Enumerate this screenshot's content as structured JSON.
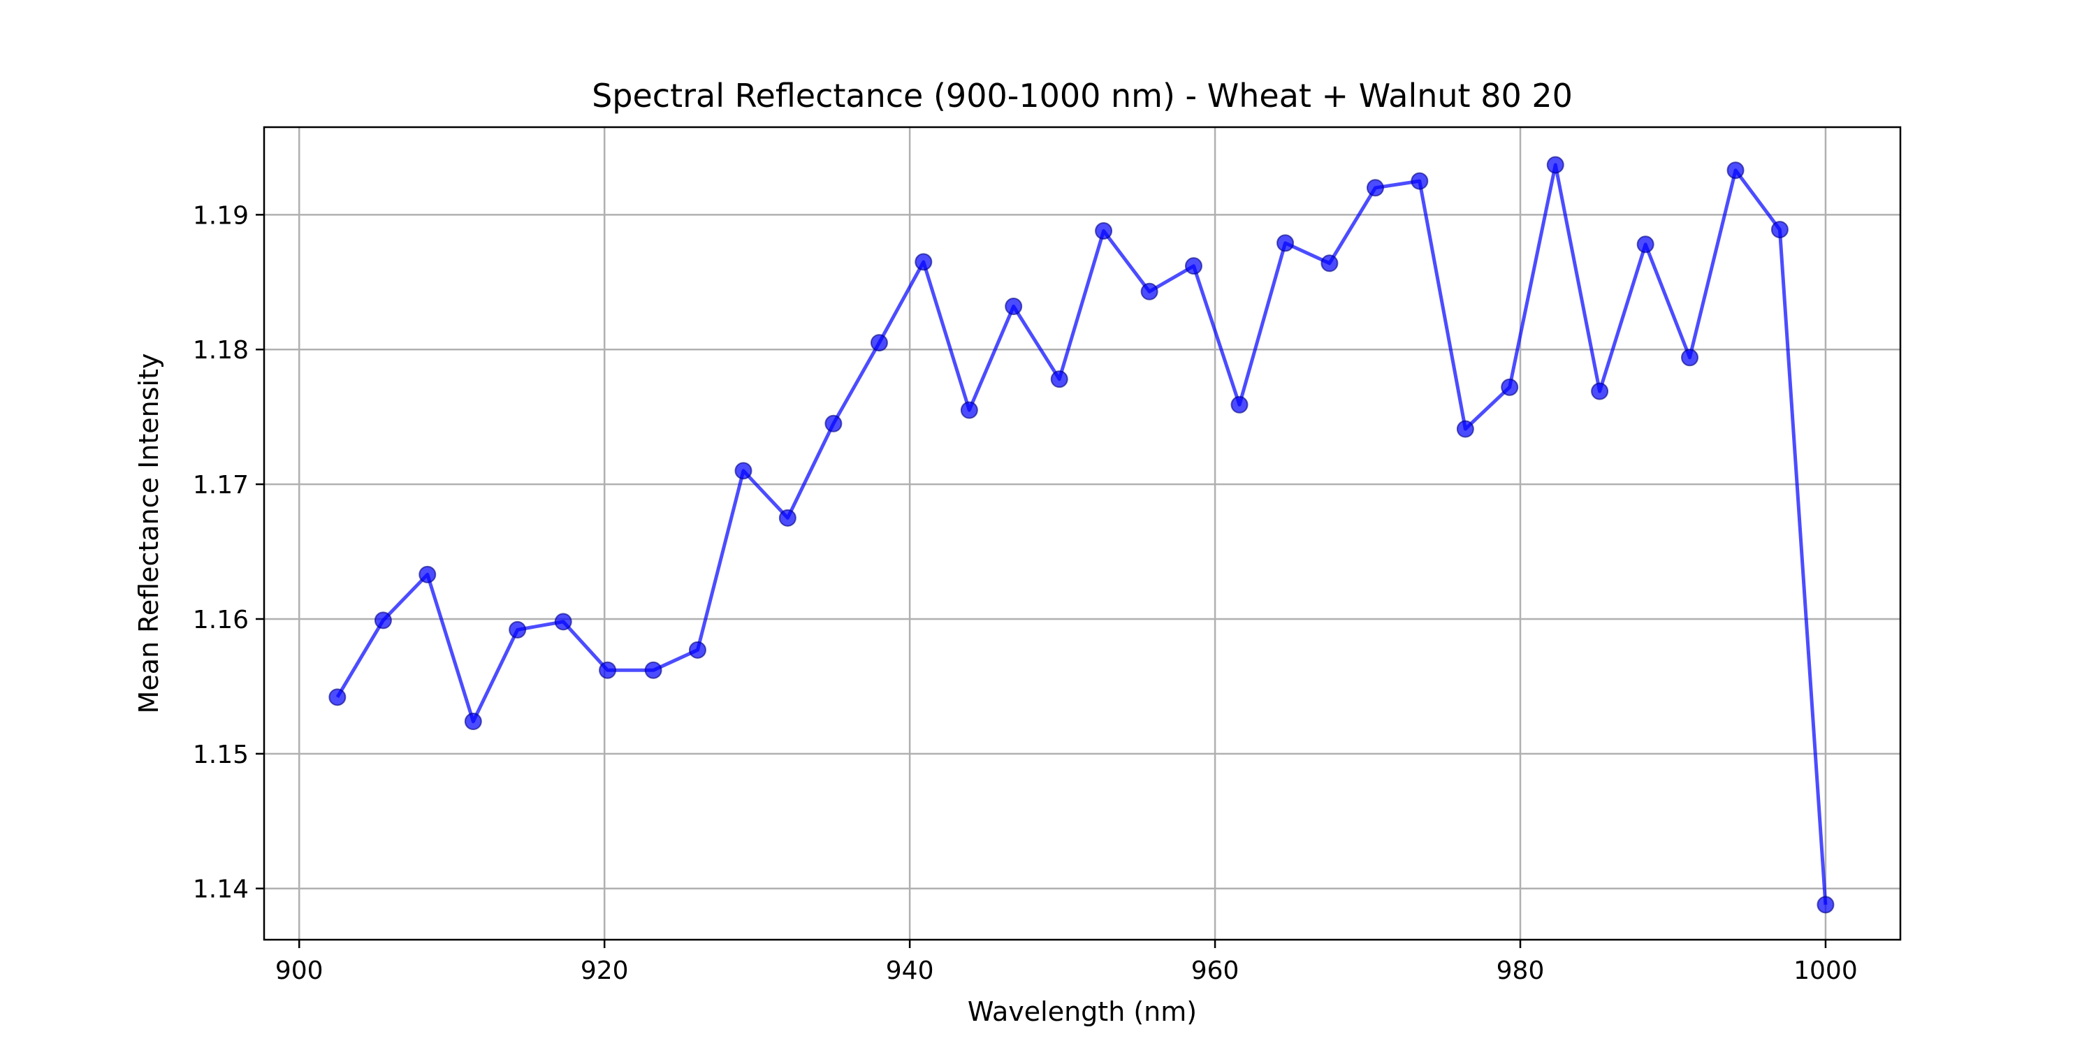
{
  "chart_data": {
    "type": "line",
    "title": "Spectral Reflectance (900-1000 nm) - Wheat + Walnut 80 20",
    "xlabel": "Wavelength (nm)",
    "ylabel": "Mean Reflectance Intensity",
    "xlim": [
      897.7,
      1004.9
    ],
    "ylim": [
      1.1362,
      1.1965
    ],
    "x_ticks": [
      900,
      920,
      940,
      960,
      980,
      1000
    ],
    "x_tick_labels": [
      "900",
      "920",
      "940",
      "960",
      "980",
      "1000"
    ],
    "y_ticks": [
      1.14,
      1.15,
      1.16,
      1.17,
      1.18,
      1.19
    ],
    "y_tick_labels": [
      "1.14",
      "1.15",
      "1.16",
      "1.17",
      "1.18",
      "1.19"
    ],
    "grid": true,
    "series": [
      {
        "color": "#0000ff",
        "marker": "circle",
        "x": [
          902.5,
          905.5,
          908.4,
          911.4,
          914.3,
          917.3,
          920.2,
          923.2,
          926.1,
          929.1,
          932.0,
          935.0,
          938.0,
          940.9,
          943.9,
          946.8,
          949.8,
          952.7,
          955.7,
          958.6,
          961.6,
          964.6,
          967.5,
          970.5,
          973.4,
          976.4,
          979.3,
          982.3,
          985.2,
          988.2,
          991.1,
          994.1,
          997.0,
          1000.0
        ],
        "y": [
          1.1542,
          1.1599,
          1.1633,
          1.1524,
          1.1592,
          1.1598,
          1.1562,
          1.1562,
          1.1577,
          1.171,
          1.1675,
          1.1745,
          1.1805,
          1.1865,
          1.1755,
          1.1832,
          1.1778,
          1.1888,
          1.1843,
          1.1862,
          1.1759,
          1.1879,
          1.1864,
          1.192,
          1.1925,
          1.1741,
          1.1772,
          1.1937,
          1.1769,
          1.1878,
          1.1794,
          1.1933,
          1.1889,
          1.1388
        ]
      }
    ]
  }
}
